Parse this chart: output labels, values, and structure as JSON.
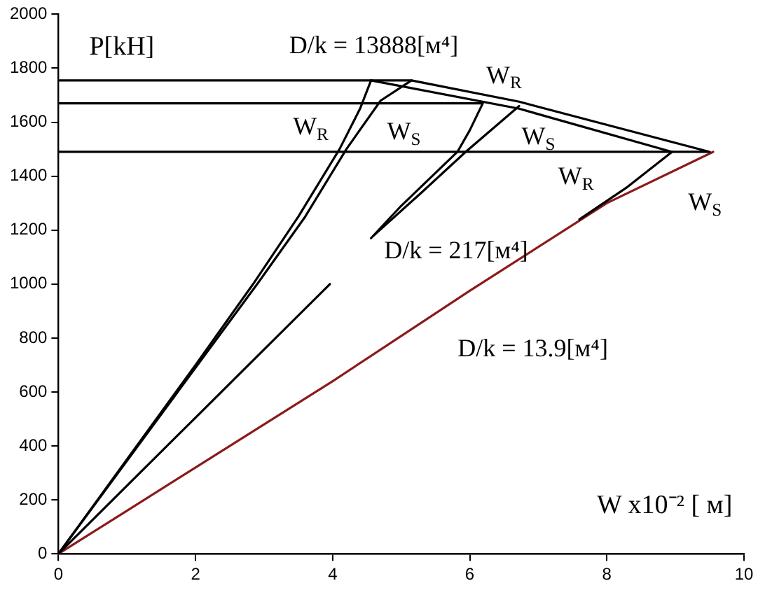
{
  "chart_data": {
    "type": "line",
    "xlabel": "W x10⁻² [ м]",
    "ylabel": "P[kH]",
    "xlim": [
      0,
      10
    ],
    "xticks": [
      0,
      2,
      4,
      6,
      8,
      10
    ],
    "ylim": [
      0,
      2000
    ],
    "yticks": [
      0,
      200,
      400,
      600,
      800,
      1000,
      1200,
      1400,
      1600,
      1800,
      2000
    ],
    "grid": false,
    "legend": false,
    "marker": "none",
    "line_style": "solid",
    "series": [
      {
        "color": "#000000",
        "x": [
          0,
          4.56,
          5.15,
          6.72,
          9.5,
          0
        ],
        "values": [
          1755,
          1755,
          1755,
          1676,
          1490,
          1490
        ]
      },
      {
        "color": "#000000",
        "x": [
          0,
          1,
          2,
          2.84,
          3.5,
          4.1,
          4.4,
          4.56
        ],
        "values": [
          0,
          350,
          700,
          1000,
          1250,
          1500,
          1650,
          1755
        ]
      },
      {
        "color": "#000000",
        "x": [
          0,
          1,
          2,
          2.9,
          3.6,
          4.2,
          4.7,
          5.15
        ],
        "values": [
          0,
          345,
          690,
          1000,
          1250,
          1500,
          1680,
          1755
        ]
      },
      {
        "color": "#000000",
        "x": [
          4.56,
          5.0,
          5.82,
          6.0,
          6.19,
          0
        ],
        "values": [
          1170,
          1290,
          1490,
          1570,
          1670,
          1670
        ]
      },
      {
        "color": "#000000",
        "x": [
          0,
          2,
          3.96,
          null,
          4.6,
          5.3,
          5.94,
          6.72
        ],
        "values": [
          0,
          505,
          1000,
          null,
          1180,
          1340,
          1490,
          1660
        ]
      },
      {
        "color": "#000000",
        "x": [
          4.56,
          6.72,
          8.95,
          8.3,
          7.6
        ],
        "values": [
          1755,
          1650,
          1490,
          1360,
          1240
        ]
      },
      {
        "color": "#8b1a1a",
        "x": [
          0,
          1,
          2,
          4,
          6,
          8,
          9.55
        ],
        "values": [
          0,
          160,
          320,
          640,
          975,
          1300,
          1490
        ]
      }
    ],
    "annotations": [
      "D/k = 13888[м⁴]",
      "W$_{R}$",
      "W$_{R}$",
      "W$_{S}$",
      "W$_{S}$",
      "W$_{R}$",
      "W$_{S}$",
      "D/k = 217[м⁴]",
      "D/k = 13.9[м⁴]"
    ]
  }
}
